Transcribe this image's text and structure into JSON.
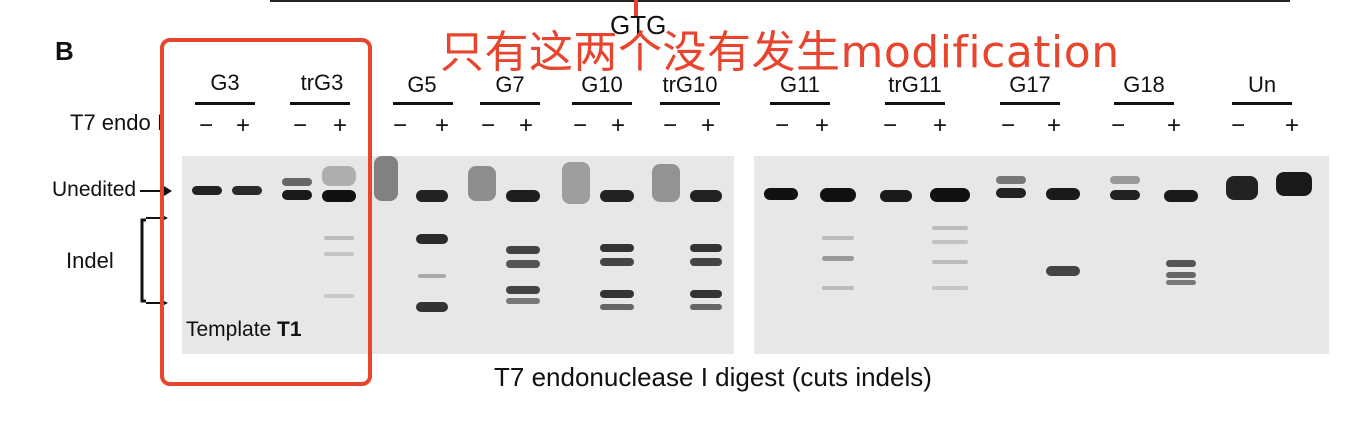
{
  "panel_label": "B",
  "top_label": "GTG",
  "annotation": "只有这两个没有发生modification",
  "t7_label": "T7 endo I",
  "minus_sign": "−",
  "plus_sign": "+",
  "unedited_label": "Unedited",
  "indel_label": "Indel",
  "template_prefix": "Template ",
  "template_bold": "T1",
  "caption": "T7 endonuclease I digest (cuts indels)",
  "lanes": [
    "G3",
    "trG3",
    "G5",
    "G7",
    "G10",
    "trG10",
    "G11",
    "trG11",
    "G17",
    "G18",
    "Un"
  ],
  "colors": {
    "annotation": "#e8452e",
    "gel": "#e7e7e7",
    "band": "#1a1a1a"
  }
}
